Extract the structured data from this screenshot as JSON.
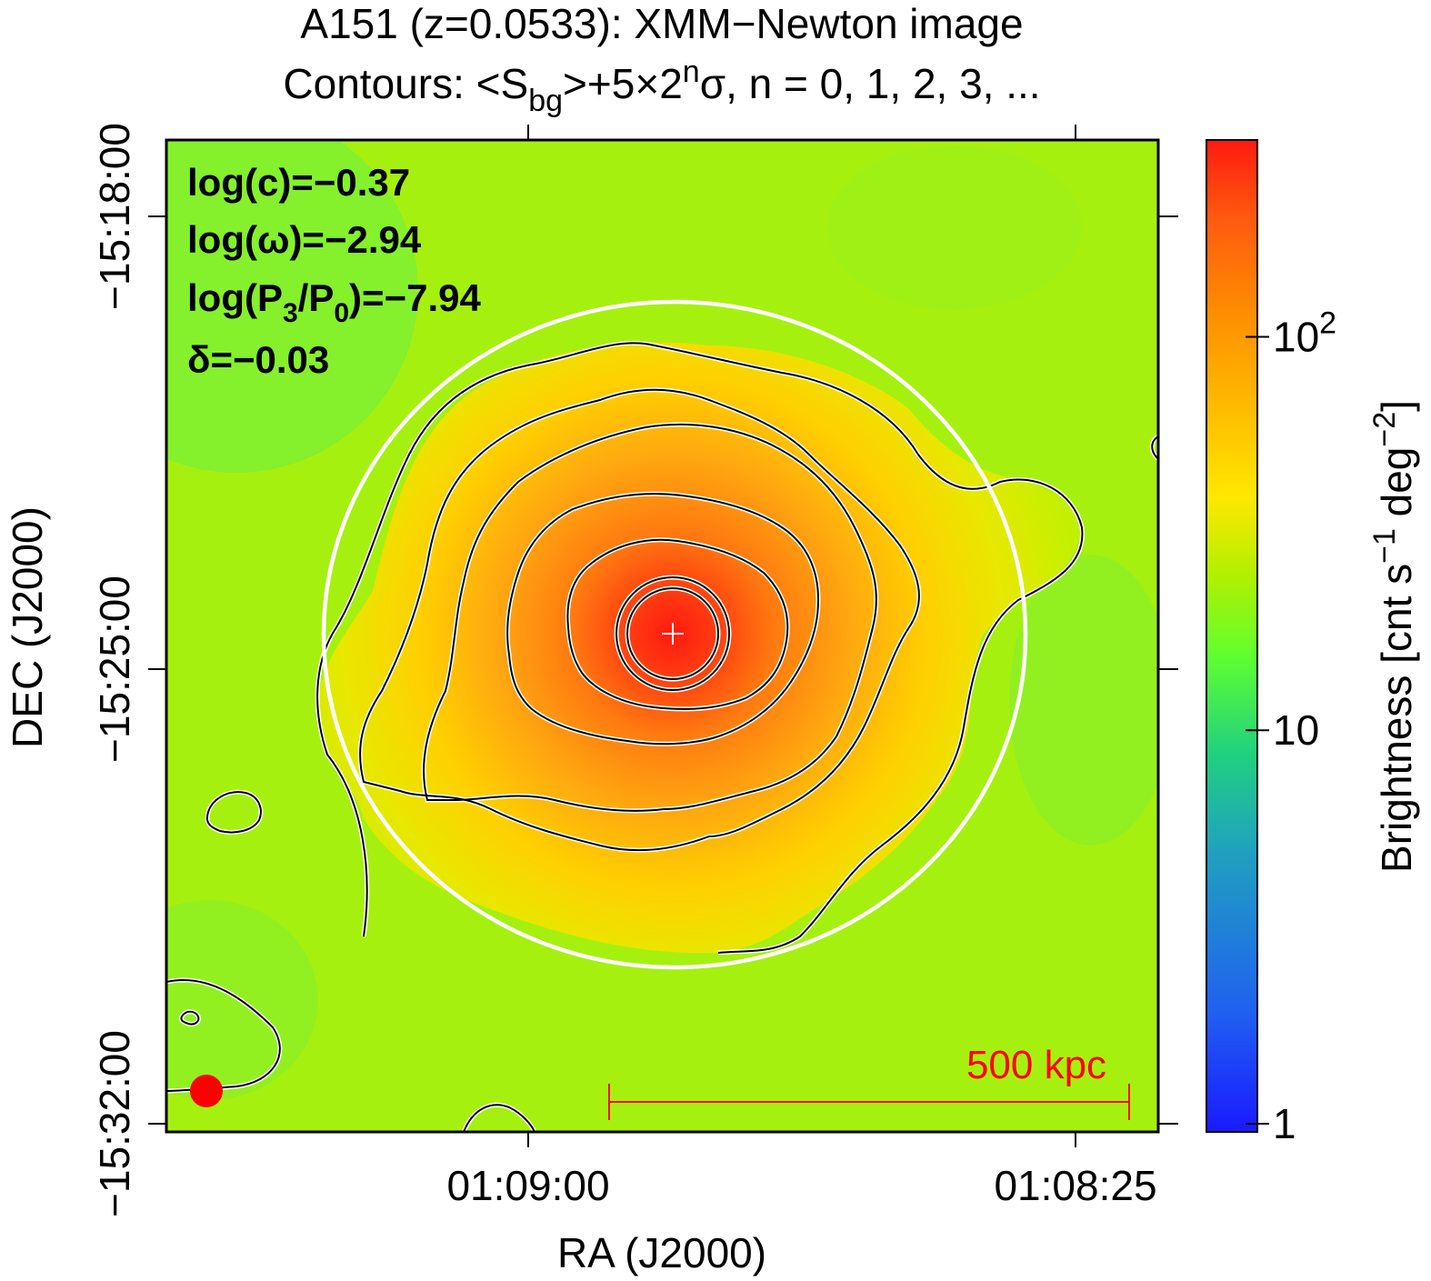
{
  "chart_data": {
    "type": "heatmap",
    "title": "A151 (z=0.0533): XMM−Newton image",
    "subtitle_prefix": "Contours: <S",
    "subtitle_sub": "bg",
    "subtitle_mid": ">+5×2",
    "subtitle_sup": "n",
    "subtitle_suffix": "σ, n = 0, 1, 2, 3, ...",
    "xlabel": "RA (J2000)",
    "ylabel": "DEC (J2000)",
    "x_ticks": [
      "01:09:00",
      "01:08:25"
    ],
    "y_ticks": [
      "−15:18:00",
      "−15:25:00",
      "−15:32:00"
    ],
    "colorbar": {
      "label": "Brightness [cnt s",
      "label_sup1": "−1",
      "label_mid": " deg",
      "label_sup2": "−2",
      "label_end": "]",
      "scale": "log",
      "range": [
        1,
        300
      ],
      "ticks": [
        {
          "base": "1",
          "exp": "",
          "value": 1
        },
        {
          "base": "10",
          "exp": "",
          "value": 10
        },
        {
          "base": "10",
          "exp": "2",
          "value": 100
        }
      ],
      "colors": [
        "#1a1aff",
        "#2080e0",
        "#20d080",
        "#60ff30",
        "#c0f000",
        "#ffe000",
        "#ffb000",
        "#ff7a10",
        "#ff2a10"
      ]
    },
    "annotations": {
      "line1_text": "log(c)=−0.37",
      "line2_text": "log(ω)=−2.94",
      "line3_a": "log(P",
      "line3_sub1": "3",
      "line3_b": "/P",
      "line3_sub2": "0",
      "line3_c": ")=−7.94",
      "line4_text": "δ=−0.03"
    },
    "scale_bar_label": "500 kpc",
    "colors": {
      "scale_bar": "#ff0000",
      "beam": "#ff0000",
      "aperture": "#ffffff",
      "contour": "#000000"
    }
  }
}
